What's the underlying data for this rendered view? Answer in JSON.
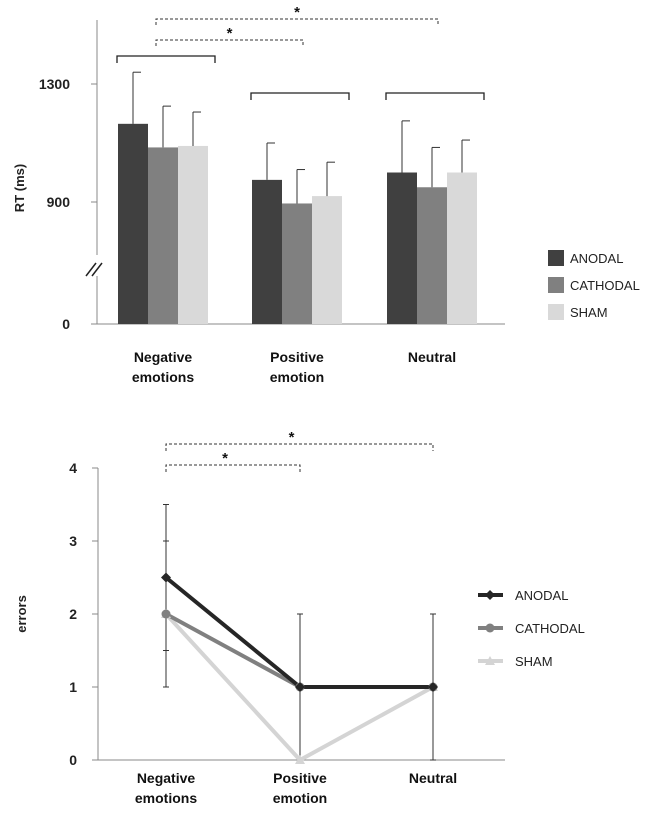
{
  "chart_data": [
    {
      "type": "bar",
      "title": "",
      "xlabel": "",
      "ylabel": "RT (ms)",
      "categories": [
        "Negative emotions",
        "Positive emotion",
        "Neutral"
      ],
      "category_lines": [
        [
          "Negative",
          "emotions"
        ],
        [
          "Positive",
          "emotion"
        ],
        [
          "Neutral"
        ]
      ],
      "ylim": [
        0,
        1300
      ],
      "y_ticks": [
        0,
        900,
        1300
      ],
      "axis_break": true,
      "series": [
        {
          "name": "ANODAL",
          "color": "#404040",
          "values": [
            1165,
            975,
            1000
          ],
          "errors": [
            175,
            125,
            175
          ]
        },
        {
          "name": "CATHODAL",
          "color": "#808080",
          "values": [
            1085,
            895,
            950
          ],
          "errors": [
            140,
            115,
            135
          ]
        },
        {
          "name": "SHAM",
          "color": "#d9d9d9",
          "values": [
            1090,
            920,
            1000
          ],
          "errors": [
            115,
            115,
            110
          ]
        }
      ],
      "legend_position": "right",
      "grid": false,
      "comparisons": [
        {
          "type": "bracket",
          "category": 0
        },
        {
          "type": "bracket",
          "category": 1
        },
        {
          "type": "bracket",
          "category": 2
        },
        {
          "type": "significance",
          "from": 0,
          "to": 1,
          "label": "*"
        },
        {
          "type": "significance",
          "from": 0,
          "to": 2,
          "label": "*"
        }
      ]
    },
    {
      "type": "line",
      "title": "",
      "xlabel": "",
      "ylabel": "errors",
      "categories": [
        "Negative emotions",
        "Positive emotion",
        "Neutral"
      ],
      "category_lines": [
        [
          "Negative",
          "emotions"
        ],
        [
          "Positive",
          "emotion"
        ],
        [
          "Neutral"
        ]
      ],
      "ylim": [
        0,
        4
      ],
      "y_ticks": [
        0,
        1,
        2,
        3,
        4
      ],
      "series": [
        {
          "name": "ANODAL",
          "color": "#262626",
          "marker": "diamond",
          "values": [
            2.5,
            1,
            1
          ],
          "errors": [
            1.0,
            1.0,
            1.0
          ]
        },
        {
          "name": "CATHODAL",
          "color": "#808080",
          "marker": "circle",
          "values": [
            2.0,
            1,
            1
          ],
          "errors": [
            1.0,
            1.0,
            1.0
          ]
        },
        {
          "name": "SHAM",
          "color": "#d4d4d4",
          "marker": "triangle",
          "values": [
            2.0,
            0,
            1
          ],
          "errors": [
            0.5,
            0,
            0
          ]
        }
      ],
      "legend_position": "right",
      "grid": false,
      "comparisons": [
        {
          "type": "significance",
          "from": 0,
          "to": 1,
          "label": "*"
        },
        {
          "type": "significance",
          "from": 0,
          "to": 2,
          "label": "*"
        }
      ]
    }
  ]
}
